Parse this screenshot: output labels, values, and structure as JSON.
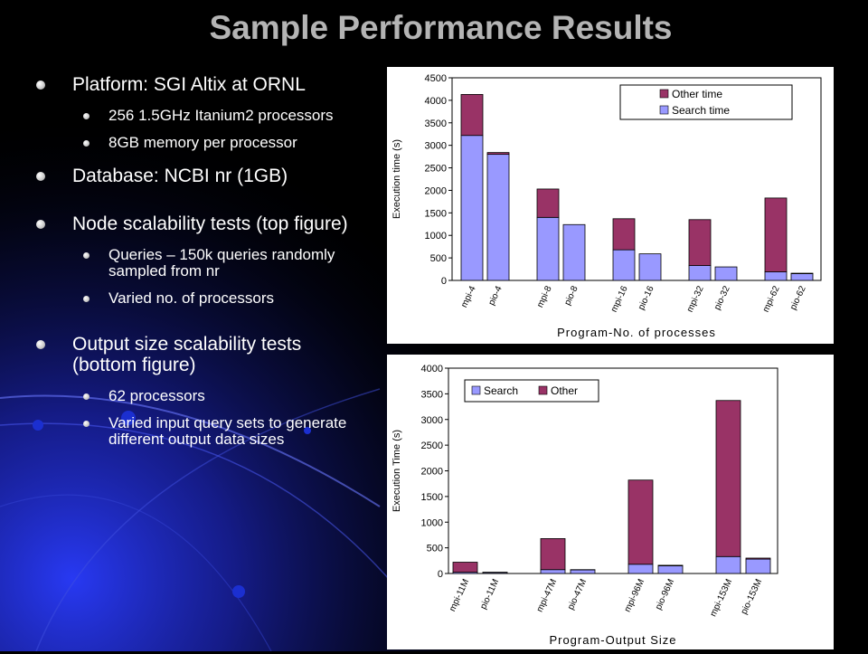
{
  "slide": {
    "title": "Sample Performance Results",
    "bullets": [
      {
        "text": "Platform: SGI Altix at ORNL",
        "subs": [
          "256 1.5GHz Itanium2 processors",
          "8GB memory per processor"
        ]
      },
      {
        "text": "Database: NCBI nr (1GB)",
        "subs": []
      },
      {
        "text": "Node scalability tests (top figure)",
        "subs": [
          "Queries – 150k queries randomly sampled from nr",
          "Varied no. of processors"
        ]
      },
      {
        "text": "Output size scalability tests (bottom figure)",
        "subs": [
          "62 processors",
          "Varied input query sets to generate different output data sizes"
        ]
      }
    ]
  },
  "colors": {
    "background": "#000000",
    "title": "#b4b4b4",
    "search": "#9999ff",
    "other": "#993366"
  },
  "chart_data": [
    {
      "type": "bar",
      "stacked": true,
      "xlabel": "Program-No. of processes",
      "ylabel": "Execution time (s)",
      "ylim": [
        0,
        4500
      ],
      "yticks": [
        0,
        500,
        1000,
        1500,
        2000,
        2500,
        3000,
        3500,
        4000,
        4500
      ],
      "grid": false,
      "legend_position": "top-right",
      "categories": [
        "mpi-4",
        "pio-4",
        "mpi-8",
        "pio-8",
        "mpi-16",
        "pio-16",
        "mpi-32",
        "pio-32",
        "mpi-62",
        "pio-62"
      ],
      "series": [
        {
          "name": "Search time",
          "color": "#9999ff",
          "values": [
            3220,
            2800,
            1400,
            1240,
            680,
            590,
            330,
            300,
            190,
            150
          ]
        },
        {
          "name": "Other time",
          "color": "#993366",
          "values": [
            910,
            40,
            630,
            0,
            690,
            0,
            1020,
            0,
            1640,
            10
          ]
        }
      ],
      "legend_order": [
        "Other time",
        "Search time"
      ]
    },
    {
      "type": "bar",
      "stacked": true,
      "xlabel": "Program-Output Size",
      "ylabel": "Execution Time (s)",
      "ylim": [
        0,
        4000
      ],
      "yticks": [
        0,
        500,
        1000,
        1500,
        2000,
        2500,
        3000,
        3500,
        4000
      ],
      "grid": false,
      "legend_position": "top-left",
      "categories": [
        "mpi-11M",
        "pio-11M",
        "mpi-47M",
        "pio-47M",
        "mpi-96M",
        "pio-96M",
        "mpi-153M",
        "pio-153M"
      ],
      "series": [
        {
          "name": "Search",
          "color": "#9999ff",
          "values": [
            25,
            20,
            75,
            70,
            180,
            150,
            330,
            280
          ]
        },
        {
          "name": "Other",
          "color": "#993366",
          "values": [
            195,
            5,
            605,
            5,
            1640,
            10,
            3040,
            20
          ]
        }
      ],
      "legend_order": [
        "Search",
        "Other"
      ]
    }
  ]
}
